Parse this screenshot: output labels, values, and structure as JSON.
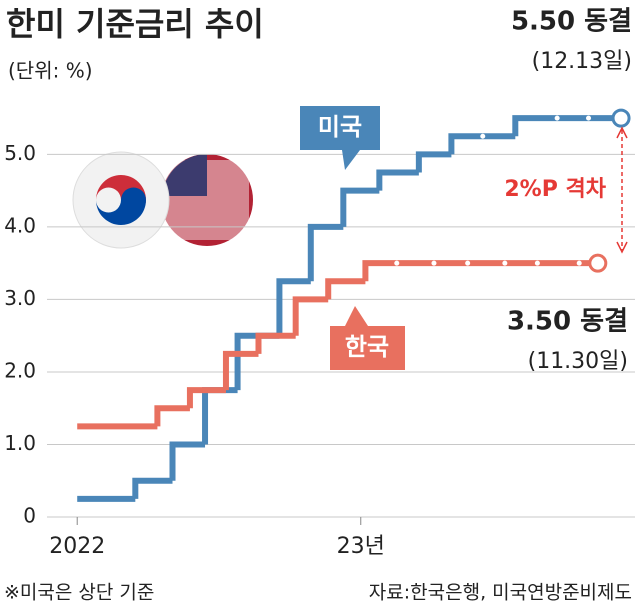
{
  "chart_data": {
    "type": "step-line",
    "title": "한미 기준금리 추이",
    "subtitle": "(단위: %)",
    "xlim": [
      -1.3,
      24
    ],
    "xticks": [
      {
        "value": 0,
        "label": "2022"
      },
      {
        "value": 12.2,
        "label": "23년"
      }
    ],
    "ylim": [
      0,
      5.75
    ],
    "yticks": [
      0,
      {
        "value": 1,
        "label": "1.0"
      },
      {
        "value": 2,
        "label": "2.0"
      },
      {
        "value": 3,
        "label": "3.0"
      },
      {
        "value": 4,
        "label": "4.0"
      },
      {
        "value": 5,
        "label": "5.0"
      }
    ],
    "grid": true,
    "series": [
      {
        "name": "미국",
        "color": "#4a86b8",
        "x": [
          0,
          2.5,
          4.1,
          5.5,
          6.9,
          8.7,
          10.05,
          11.45,
          13.0,
          14.7,
          16.1,
          17.45,
          18.85,
          20.65,
          22.0,
          23.4
        ],
        "values": [
          0.25,
          0.5,
          1.0,
          1.75,
          2.5,
          3.25,
          4.0,
          4.5,
          4.75,
          5.0,
          5.25,
          5.25,
          5.5,
          5.5,
          5.5,
          5.5
        ]
      },
      {
        "name": "한국",
        "color": "#e8705f",
        "x": [
          0,
          3.45,
          4.85,
          6.4,
          7.8,
          9.4,
          10.8,
          12.4,
          13.75,
          15.35,
          16.8,
          18.4,
          19.8,
          21.6,
          22.4
        ],
        "values": [
          1.25,
          1.5,
          1.75,
          2.25,
          2.5,
          3.0,
          3.25,
          3.5,
          3.5,
          3.5,
          3.5,
          3.5,
          3.5,
          3.5,
          3.5
        ]
      }
    ],
    "annotations": {
      "us_value": "5.50 동결",
      "us_date": "(12.13일)",
      "kr_value": "3.50 동결",
      "kr_date": "(11.30일)",
      "gap": "2%P 격차"
    },
    "footnote": "※미국은 상단 기준",
    "source": "자료:한국은행, 미국연방준비제도"
  }
}
